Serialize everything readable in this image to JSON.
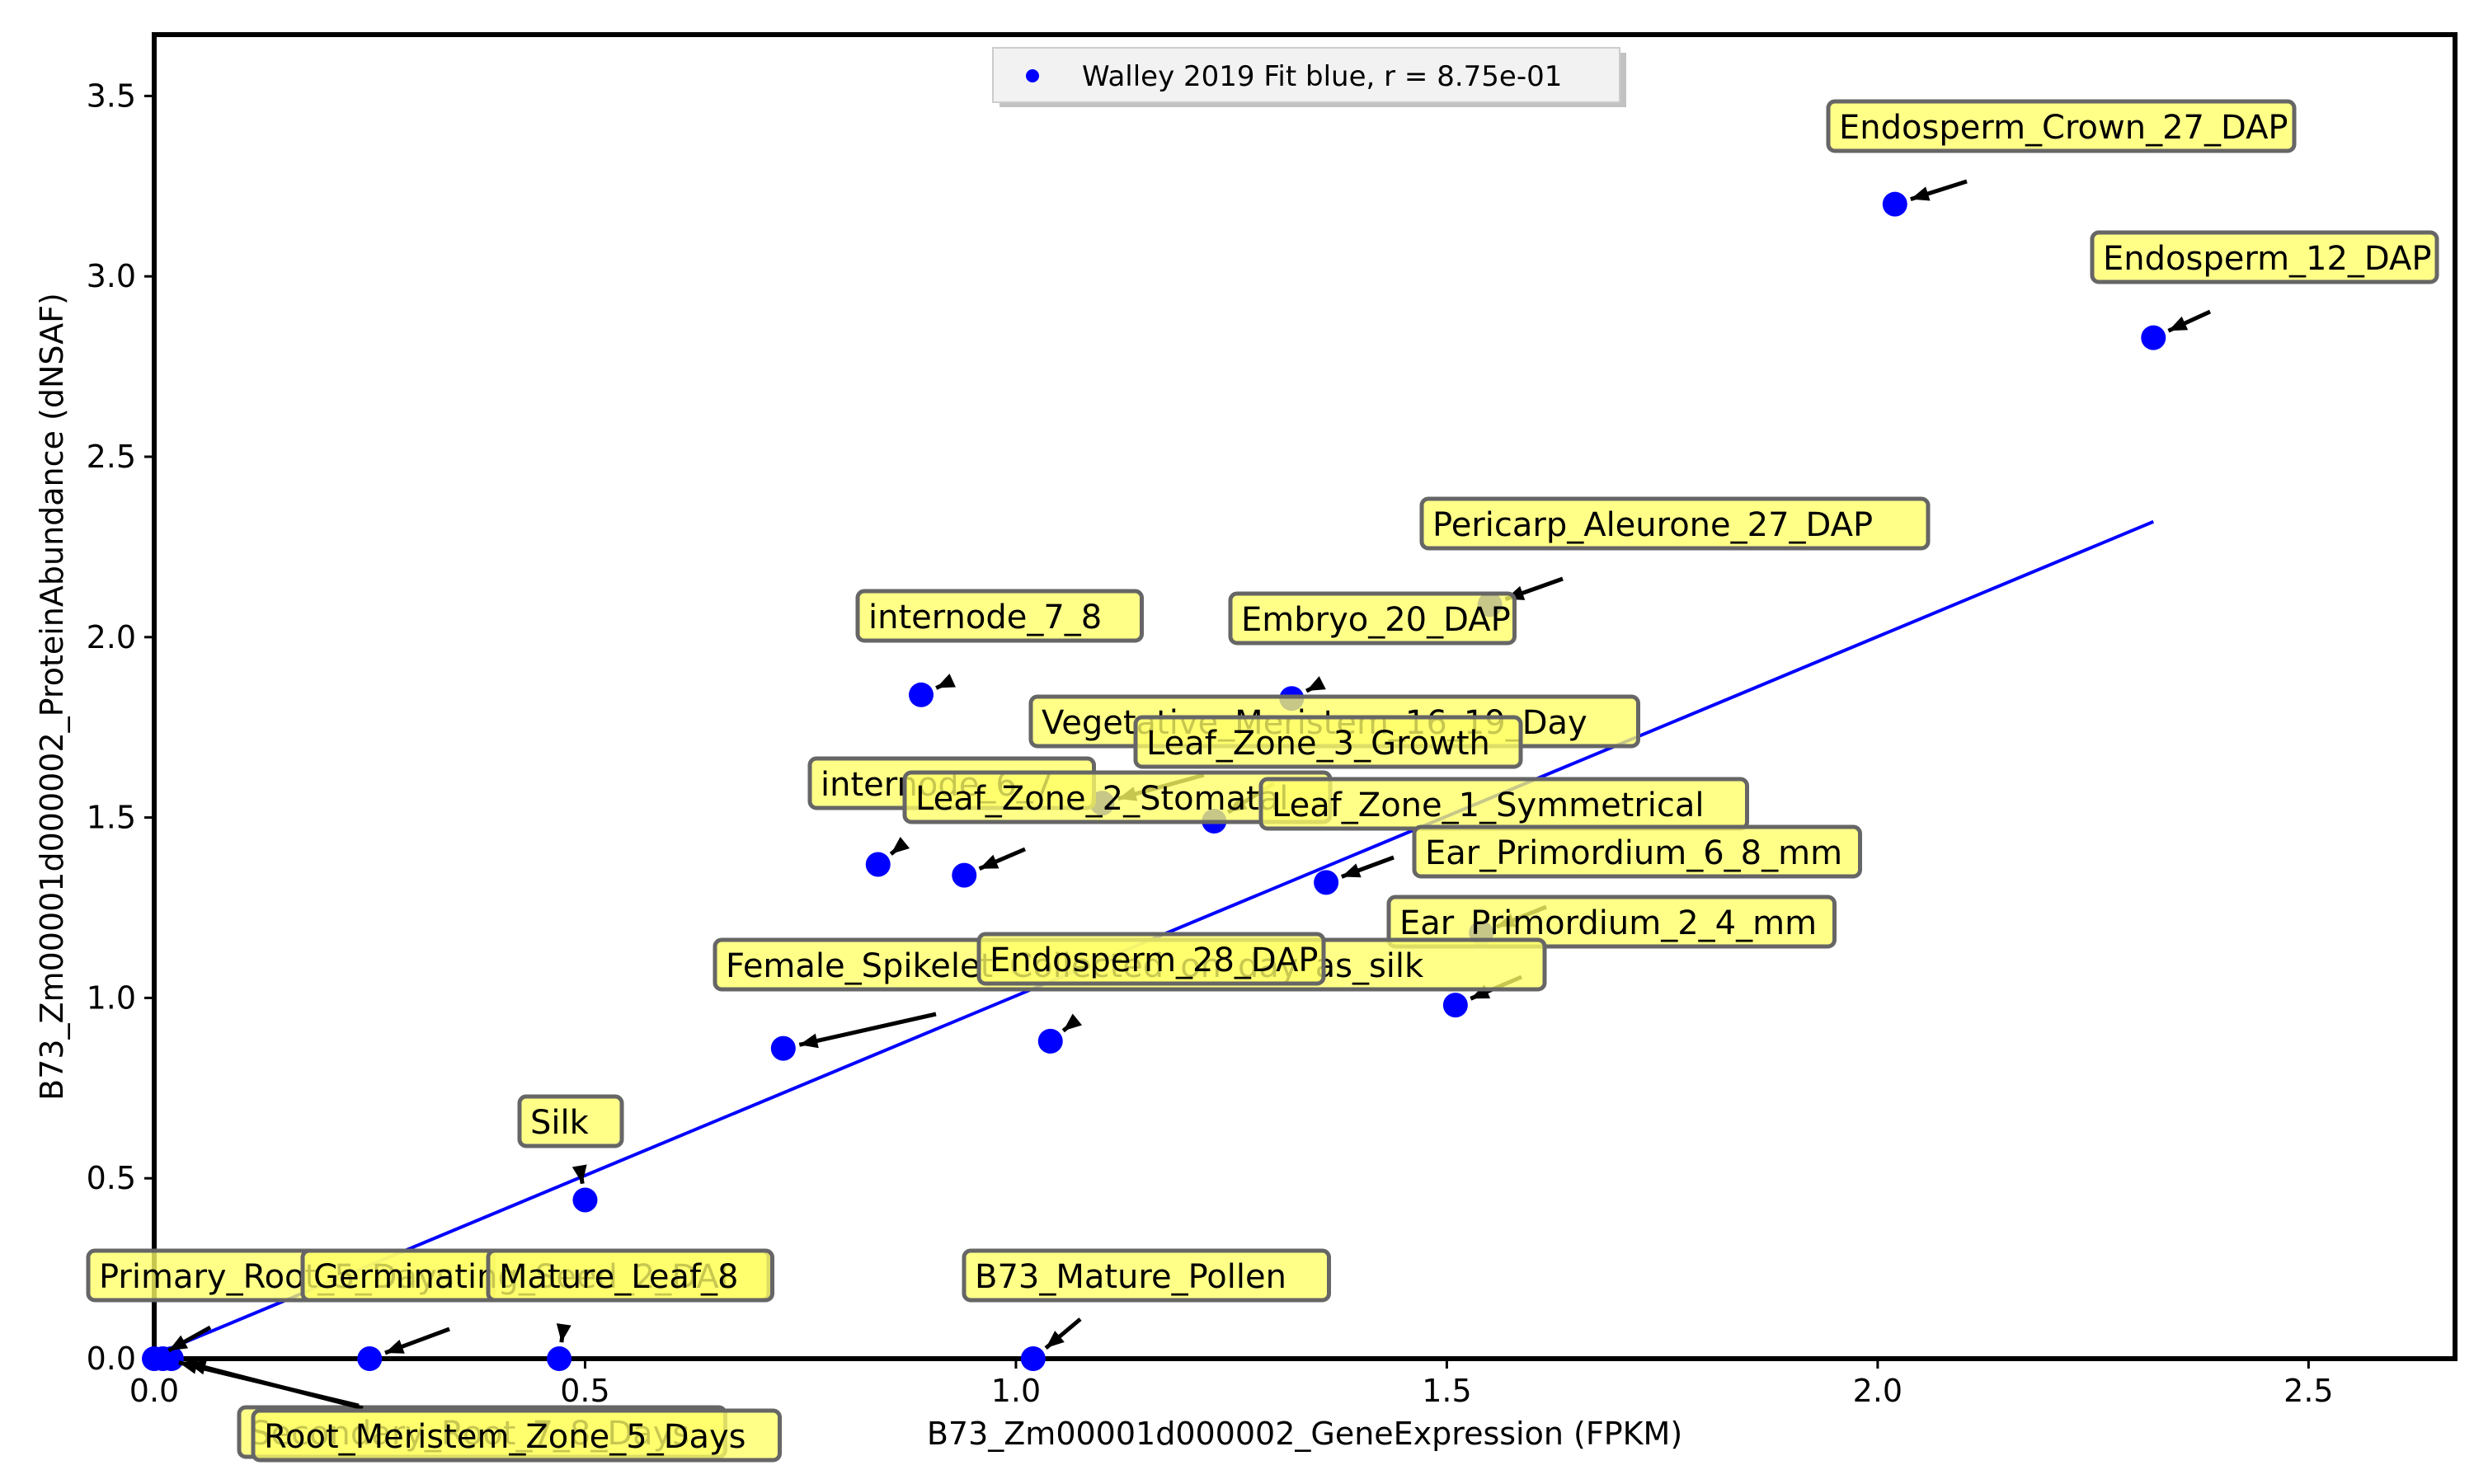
{
  "chart_data": {
    "type": "scatter",
    "title": "",
    "xlabel": "B73_Zm00001d000002_GeneExpression (FPKM)",
    "ylabel": "B73_Zm00001d000002_ProteinAbundance (dNSAF)",
    "xlim": [
      0.0,
      2.67
    ],
    "ylim": [
      0.0,
      3.67
    ],
    "xticks": [
      "0.0",
      "0.5",
      "1.0",
      "1.5",
      "2.0",
      "2.5"
    ],
    "yticks": [
      "0.0",
      "0.5",
      "1.0",
      "1.5",
      "2.0",
      "2.5",
      "3.0",
      "3.5"
    ],
    "grid": false,
    "legend": {
      "position": "top-center",
      "entries": [
        {
          "label": "Walley 2019 Fit   blue, r = 8.75e-01",
          "color": "#0000ff"
        }
      ]
    },
    "fit_line": {
      "color": "#0000ff",
      "x": [
        0.0,
        2.32
      ],
      "y": [
        0.01,
        2.32
      ]
    },
    "annotation_box_color": "#ffff66",
    "points": [
      {
        "label": "Endosperm_Crown_27_DAP",
        "x": 2.02,
        "y": 3.2,
        "color": "#0000ff"
      },
      {
        "label": "Endosperm_12_DAP",
        "x": 2.32,
        "y": 2.83,
        "color": "#0000ff"
      },
      {
        "label": "Pericarp_Aleurone_27_DAP",
        "x": 1.55,
        "y": 2.09,
        "color": "#0000ff"
      },
      {
        "label": "internode_7_8",
        "x": 0.89,
        "y": 1.84,
        "color": "#0000ff"
      },
      {
        "label": "Embryo_20_DAP",
        "x": 1.32,
        "y": 1.83,
        "color": "#0000ff"
      },
      {
        "label": "Vegetative_Meristem_16_19_Day",
        "x": 1.1,
        "y": 1.54,
        "color": "#0000ff"
      },
      {
        "label": "Leaf_Zone_3_Growth",
        "x": 1.23,
        "y": 1.49,
        "color": "#0000ff"
      },
      {
        "label": "internode_6_7",
        "x": 0.84,
        "y": 1.37,
        "color": "#0000ff"
      },
      {
        "label": "Leaf_Zone_2_Stomatal",
        "x": 0.94,
        "y": 1.34,
        "color": "#0000ff"
      },
      {
        "label": "Leaf_Zone_1_Symmetrical",
        "x": 1.36,
        "y": 1.32,
        "color": "#0000ff"
      },
      {
        "label": "Ear_Primordium_6_8_mm",
        "x": 1.54,
        "y": 1.18,
        "color": "#0000ff"
      },
      {
        "label": "Ear_Primordium_2_4_mm",
        "x": 1.51,
        "y": 0.98,
        "color": "#0000ff"
      },
      {
        "label": "Female_Spikelet_Collected_on_day_as_silk",
        "x": 0.73,
        "y": 0.86,
        "color": "#0000ff"
      },
      {
        "label": "Endosperm_28_DAP",
        "x": 1.04,
        "y": 0.88,
        "color": "#0000ff"
      },
      {
        "label": "Silk",
        "x": 0.5,
        "y": 0.44,
        "color": "#0000ff"
      },
      {
        "label": "Primary_Root_5_Days",
        "x": 0.0,
        "y": 0.0,
        "color": "#0000ff"
      },
      {
        "label": "Germinating_Seed_2_DAI",
        "x": 0.25,
        "y": 0.0,
        "color": "#0000ff"
      },
      {
        "label": "Mature_Leaf_8",
        "x": 0.47,
        "y": 0.0,
        "color": "#0000ff"
      },
      {
        "label": "B73_Mature_Pollen",
        "x": 1.02,
        "y": 0.0,
        "color": "#0000ff"
      },
      {
        "label": "Secondary_Root_7_8_Days",
        "x": 0.01,
        "y": 0.0,
        "color": "#0000ff"
      },
      {
        "label": "Root_Meristem_Zone_5_Days",
        "x": 0.02,
        "y": 0.0,
        "color": "#0000ff"
      }
    ]
  }
}
